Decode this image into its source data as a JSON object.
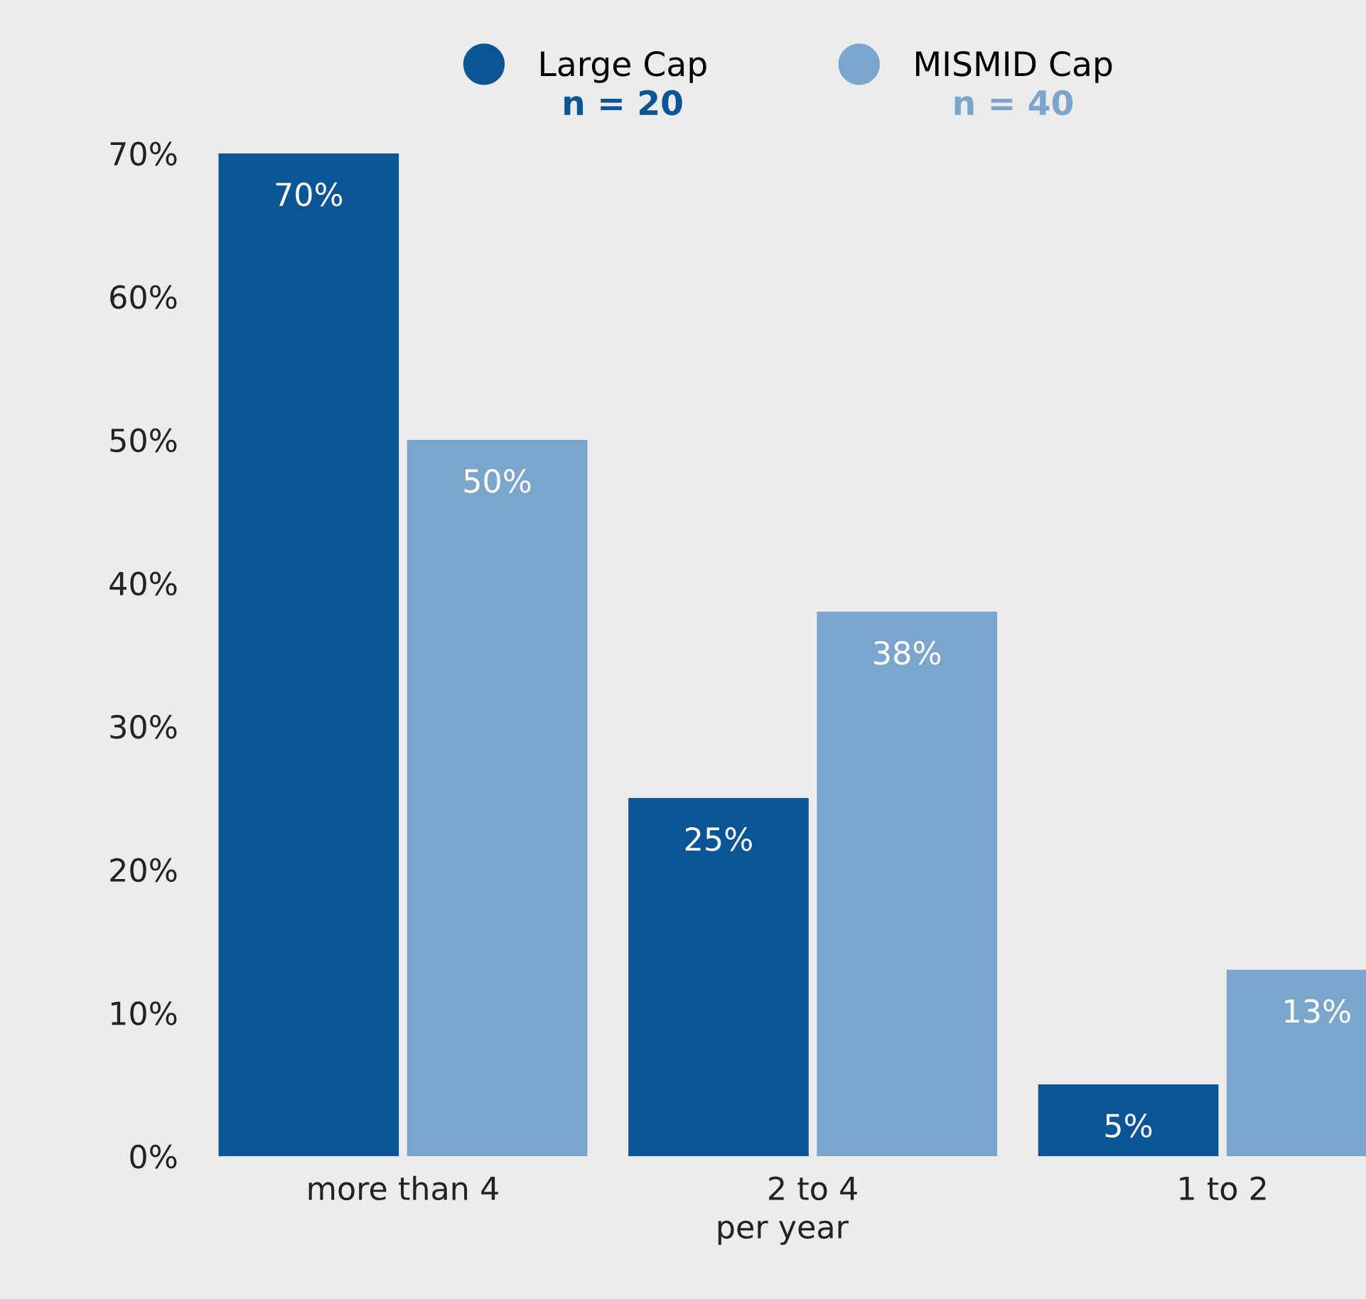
{
  "chart_data": {
    "type": "bar",
    "xlabel": "per year",
    "categories": [
      "more than 4",
      "2 to 4",
      "1 to 2"
    ],
    "series": [
      {
        "name": "Large Cap",
        "color": "#0b5596",
        "values": [
          70,
          25,
          5
        ],
        "value_labels": [
          "70%",
          "25%",
          "5%"
        ]
      },
      {
        "name": "MISMID Cap",
        "color": "#7ba5cb",
        "values": [
          50,
          38,
          13
        ],
        "value_labels": [
          "50%",
          "38%",
          "13%"
        ]
      }
    ],
    "annotations": [
      "n = 20",
      "n = 40"
    ],
    "ylim": [
      0,
      70
    ],
    "yticks": [
      {
        "value": 0,
        "label": "0%"
      },
      {
        "value": 10,
        "label": "10%"
      },
      {
        "value": 20,
        "label": "20%"
      },
      {
        "value": 30,
        "label": "30%"
      },
      {
        "value": 40,
        "label": "40%"
      },
      {
        "value": 50,
        "label": "50%"
      },
      {
        "value": 60,
        "label": "60%"
      },
      {
        "value": 70,
        "label": "70%"
      }
    ],
    "grid": false,
    "legend": "top"
  }
}
